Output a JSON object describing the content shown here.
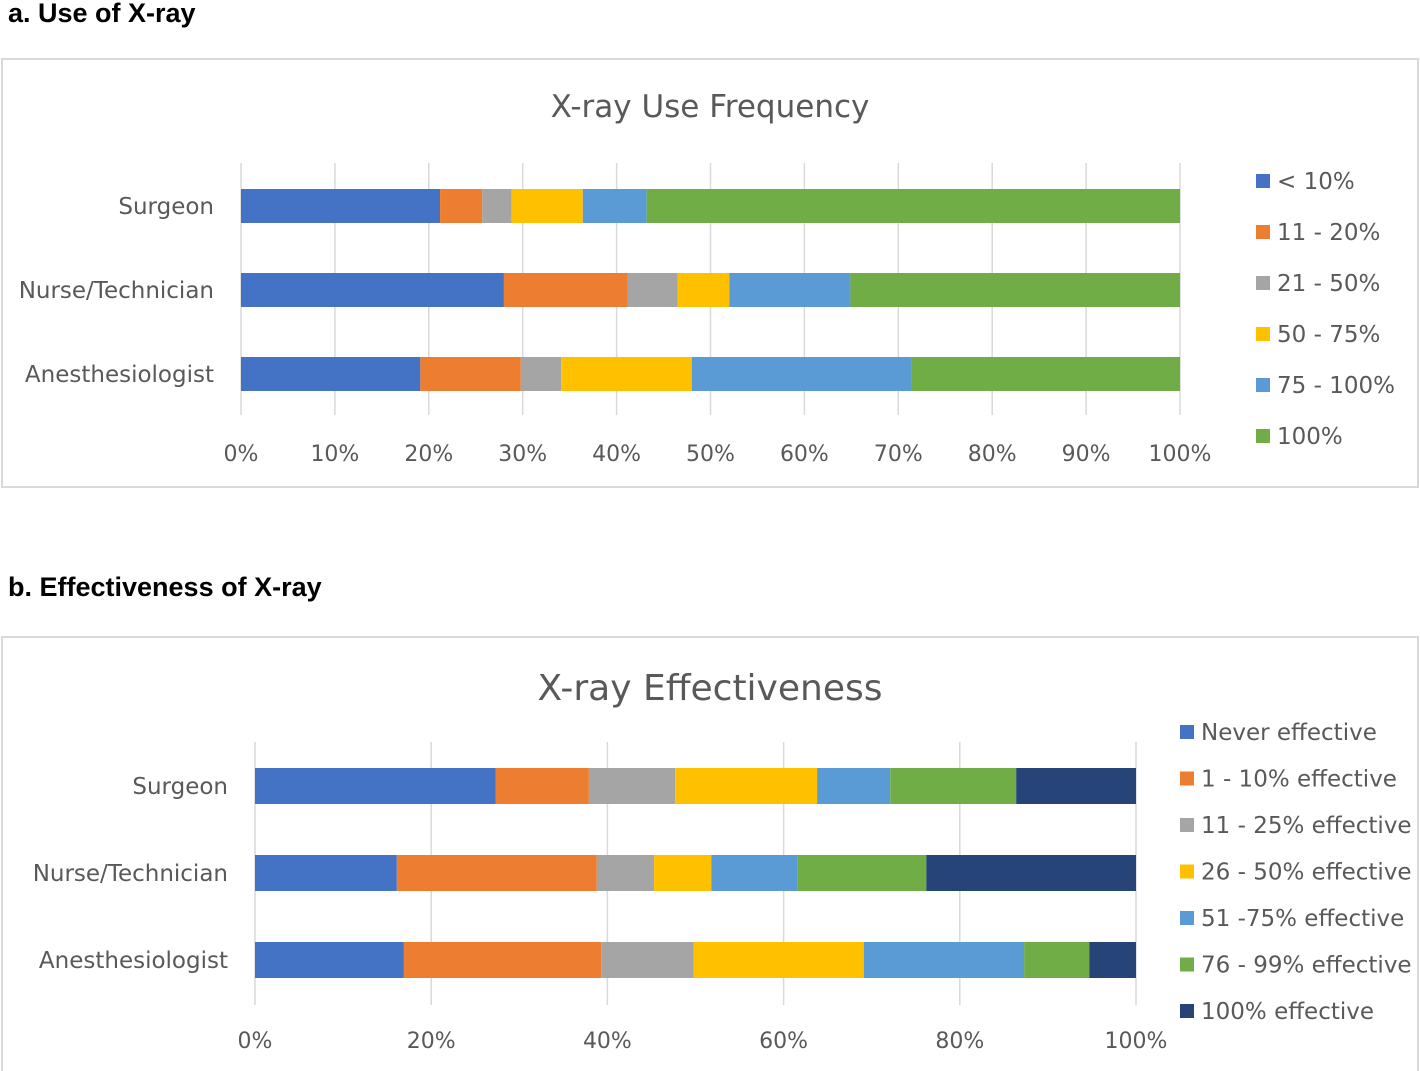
{
  "panel_a_label": "a. Use of X-ray",
  "panel_b_label": "b. Effectiveness of X-ray",
  "chart_data": [
    {
      "type": "bar",
      "orientation": "horizontal",
      "stacked": "percent",
      "title": "X-ray Use Frequency",
      "categories": [
        "Surgeon",
        "Nurse/Technician",
        "Anesthesiologist"
      ],
      "xticks": [
        "0%",
        "10%",
        "20%",
        "30%",
        "40%",
        "50%",
        "60%",
        "70%",
        "80%",
        "90%",
        "100%"
      ],
      "xlim": [
        0,
        100
      ],
      "grid": true,
      "legend_position": "right",
      "series": [
        {
          "name": "< 10%",
          "color": "#4472c4",
          "values": [
            21.2,
            28.0,
            19.1
          ]
        },
        {
          "name": "11 - 20%",
          "color": "#ed7d31",
          "values": [
            4.5,
            13.2,
            10.7
          ]
        },
        {
          "name": "21 - 50%",
          "color": "#a5a5a5",
          "values": [
            3.1,
            5.3,
            4.3
          ]
        },
        {
          "name": "50 - 75%",
          "color": "#ffc000",
          "values": [
            7.6,
            5.5,
            13.9
          ]
        },
        {
          "name": "75 - 100%",
          "color": "#5b9bd5",
          "values": [
            6.8,
            12.9,
            23.4
          ]
        },
        {
          "name": "100%",
          "color": "#70ad47",
          "values": [
            56.8,
            35.1,
            28.6
          ]
        }
      ]
    },
    {
      "type": "bar",
      "orientation": "horizontal",
      "stacked": "percent",
      "title": "X-ray Effectiveness",
      "categories": [
        "Surgeon",
        "Nurse/Technician",
        "Anesthesiologist"
      ],
      "xticks": [
        "0%",
        "20%",
        "40%",
        "60%",
        "80%",
        "100%"
      ],
      "xlim": [
        0,
        100
      ],
      "grid": true,
      "legend_position": "right",
      "series": [
        {
          "name": "Never effective",
          "color": "#4472c4",
          "values": [
            27.3,
            16.1,
            16.9
          ]
        },
        {
          "name": "1 - 10% effective",
          "color": "#ed7d31",
          "values": [
            10.6,
            22.7,
            22.4
          ]
        },
        {
          "name": "11 - 25% effective",
          "color": "#a5a5a5",
          "values": [
            9.8,
            6.5,
            10.5
          ]
        },
        {
          "name": "26 - 50% effective",
          "color": "#ffc000",
          "values": [
            16.1,
            6.5,
            19.3
          ]
        },
        {
          "name": "51 -75% effective",
          "color": "#5b9bd5",
          "values": [
            8.3,
            9.8,
            18.2
          ]
        },
        {
          "name": "76 - 99% effective",
          "color": "#70ad47",
          "values": [
            14.3,
            14.6,
            7.4
          ]
        },
        {
          "name": "100% effective",
          "color": "#264478",
          "values": [
            13.6,
            23.8,
            5.3
          ]
        }
      ]
    }
  ]
}
